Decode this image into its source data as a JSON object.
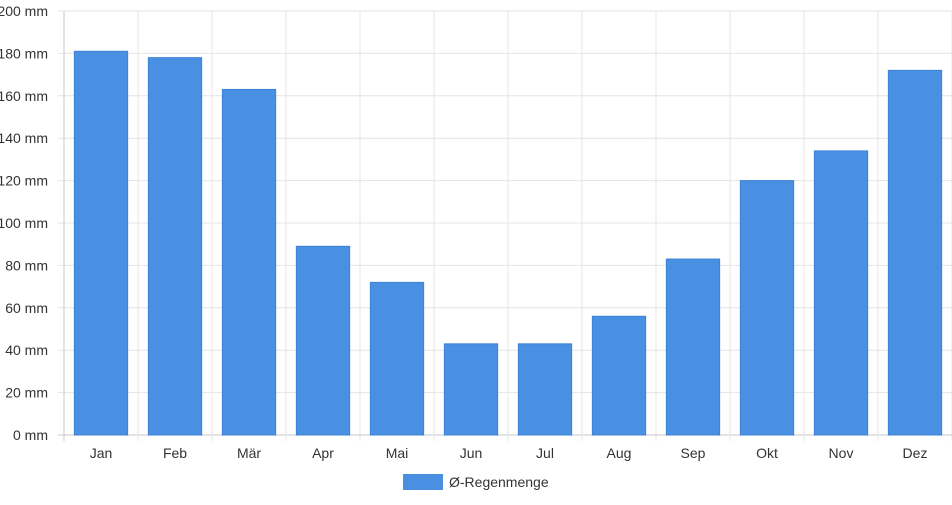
{
  "chart_data": {
    "type": "bar",
    "categories": [
      "Jan",
      "Feb",
      "Mär",
      "Apr",
      "Mai",
      "Jun",
      "Jul",
      "Aug",
      "Sep",
      "Okt",
      "Nov",
      "Dez"
    ],
    "series": [
      {
        "name": "Ø-Regenmenge",
        "values": [
          181,
          178,
          163,
          89,
          72,
          43,
          43,
          56,
          83,
          120,
          134,
          172
        ]
      }
    ],
    "y_unit": "mm",
    "y_ticks": [
      "0 mm",
      "20 mm",
      "40 mm",
      "60 mm",
      "80 mm",
      "100 mm",
      "120 mm",
      "140 mm",
      "160 mm",
      "180 mm",
      "200 mm"
    ],
    "ylim": [
      0,
      200
    ],
    "grid": true,
    "legend_position": "bottom",
    "color": "#4a90e2"
  },
  "legend": {
    "label": "Ø-Regenmenge"
  }
}
